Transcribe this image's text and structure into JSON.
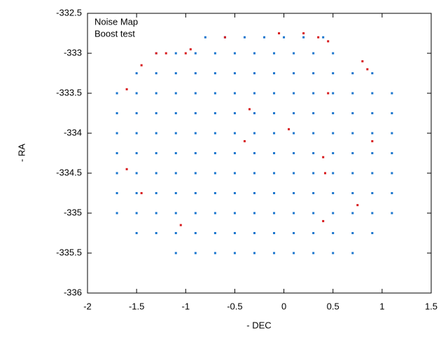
{
  "chart_data": {
    "type": "scatter",
    "xlabel": "- DEC",
    "ylabel": "- RA",
    "xlim": [
      -2,
      1.5
    ],
    "xticks": [
      -2,
      -1.5,
      -1,
      -0.5,
      0,
      0.5,
      1,
      1.5
    ],
    "ylim": [
      -336,
      -332.5
    ],
    "yticks": [
      -336,
      -335.5,
      -335,
      -334.5,
      -334,
      -333.5,
      -333,
      -332.5
    ],
    "legend": "upper left",
    "series": [
      {
        "name": "Noise Map",
        "color": "#1874cd",
        "x": [
          -0.8,
          -0.6,
          -0.4,
          -0.2,
          0,
          0.2,
          0.4,
          -1.3,
          -1.1,
          -0.9,
          -0.7,
          -0.5,
          -0.3,
          -0.1,
          0.1,
          0.3,
          0.5,
          -1.5,
          -1.3,
          -1.1,
          -0.9,
          -0.7,
          -0.5,
          -0.3,
          -0.1,
          0.1,
          0.3,
          0.5,
          0.7,
          0.9,
          -1.7,
          -1.5,
          -1.3,
          -1.1,
          -0.9,
          -0.7,
          -0.5,
          -0.3,
          -0.1,
          0.1,
          0.3,
          0.5,
          0.7,
          0.9,
          1.1,
          -1.7,
          -1.5,
          -1.3,
          -1.1,
          -0.9,
          -0.7,
          -0.5,
          -0.3,
          -0.1,
          0.1,
          0.3,
          0.5,
          0.7,
          0.9,
          1.1,
          -1.7,
          -1.5,
          -1.3,
          -1.1,
          -0.9,
          -0.7,
          -0.5,
          -0.3,
          -0.1,
          0.1,
          0.3,
          0.5,
          0.7,
          0.9,
          1.1,
          -1.7,
          -1.5,
          -1.3,
          -1.1,
          -0.9,
          -0.7,
          -0.5,
          -0.3,
          -0.1,
          0.1,
          0.3,
          0.5,
          0.7,
          0.9,
          1.1,
          -1.7,
          -1.5,
          -1.3,
          -1.1,
          -0.9,
          -0.7,
          -0.5,
          -0.3,
          -0.1,
          0.1,
          0.3,
          0.5,
          0.7,
          0.9,
          1.1,
          -1.7,
          -1.5,
          -1.3,
          -1.1,
          -0.9,
          -0.7,
          -0.5,
          -0.3,
          -0.1,
          0.1,
          0.3,
          0.5,
          0.7,
          0.9,
          1.1,
          -1.7,
          -1.5,
          -1.3,
          -1.1,
          -0.9,
          -0.7,
          -0.5,
          -0.3,
          -0.1,
          0.1,
          0.3,
          0.5,
          0.7,
          0.9,
          1.1,
          -1.5,
          -1.3,
          -1.1,
          -0.9,
          -0.7,
          -0.5,
          -0.3,
          -0.1,
          0.1,
          0.3,
          0.5,
          0.7,
          0.9,
          -1.1,
          -0.9,
          -0.7,
          -0.5,
          -0.3,
          -0.1,
          0.1,
          0.3,
          0.5,
          0.7
        ],
        "y": [
          -332.8,
          -332.8,
          -332.8,
          -332.8,
          -332.8,
          -332.8,
          -332.8,
          -333,
          -333,
          -333,
          -333,
          -333,
          -333,
          -333,
          -333,
          -333,
          -333,
          -333.25,
          -333.25,
          -333.25,
          -333.25,
          -333.25,
          -333.25,
          -333.25,
          -333.25,
          -333.25,
          -333.25,
          -333.25,
          -333.25,
          -333.25,
          -333.5,
          -333.5,
          -333.5,
          -333.5,
          -333.5,
          -333.5,
          -333.5,
          -333.5,
          -333.5,
          -333.5,
          -333.5,
          -333.5,
          -333.5,
          -333.5,
          -333.5,
          -333.75,
          -333.75,
          -333.75,
          -333.75,
          -333.75,
          -333.75,
          -333.75,
          -333.75,
          -333.75,
          -333.75,
          -333.75,
          -333.75,
          -333.75,
          -333.75,
          -333.75,
          -334,
          -334,
          -334,
          -334,
          -334,
          -334,
          -334,
          -334,
          -334,
          -334,
          -334,
          -334,
          -334,
          -334,
          -334,
          -334.25,
          -334.25,
          -334.25,
          -334.25,
          -334.25,
          -334.25,
          -334.25,
          -334.25,
          -334.25,
          -334.25,
          -334.25,
          -334.25,
          -334.25,
          -334.25,
          -334.25,
          -334.5,
          -334.5,
          -334.5,
          -334.5,
          -334.5,
          -334.5,
          -334.5,
          -334.5,
          -334.5,
          -334.5,
          -334.5,
          -334.5,
          -334.5,
          -334.5,
          -334.5,
          -334.75,
          -334.75,
          -334.75,
          -334.75,
          -334.75,
          -334.75,
          -334.75,
          -334.75,
          -334.75,
          -334.75,
          -334.75,
          -334.75,
          -334.75,
          -334.75,
          -334.75,
          -335,
          -335,
          -335,
          -335,
          -335,
          -335,
          -335,
          -335,
          -335,
          -335,
          -335,
          -335,
          -335,
          -335,
          -335,
          -335.25,
          -335.25,
          -335.25,
          -335.25,
          -335.25,
          -335.25,
          -335.25,
          -335.25,
          -335.25,
          -335.25,
          -335.25,
          -335.25,
          -335.25,
          -335.5,
          -335.5,
          -335.5,
          -335.5,
          -335.5,
          -335.5,
          -335.5,
          -335.5,
          -335.5,
          -335.5
        ]
      },
      {
        "name": "Boost test",
        "color": "#d7191c",
        "x": [
          -1.3,
          -1.2,
          -1.0,
          -0.95,
          -1.45,
          -1.6,
          -0.6,
          -0.05,
          0.2,
          0.35,
          0.45,
          0.8,
          0.85,
          0.45,
          0.4,
          0.42,
          0.4,
          -1.6,
          -1.05,
          -0.4,
          0.05,
          -0.35,
          0.9,
          0.75,
          -1.45
        ],
        "y": [
          -333,
          -333,
          -333,
          -332.95,
          -333.15,
          -333.45,
          -332.8,
          -332.75,
          -332.75,
          -332.8,
          -332.85,
          -333.1,
          -333.2,
          -333.5,
          -334.3,
          -334.5,
          -335.1,
          -334.45,
          -335.15,
          -334.1,
          -333.95,
          -333.7,
          -334.1,
          -334.9,
          -334.75
        ]
      }
    ]
  }
}
